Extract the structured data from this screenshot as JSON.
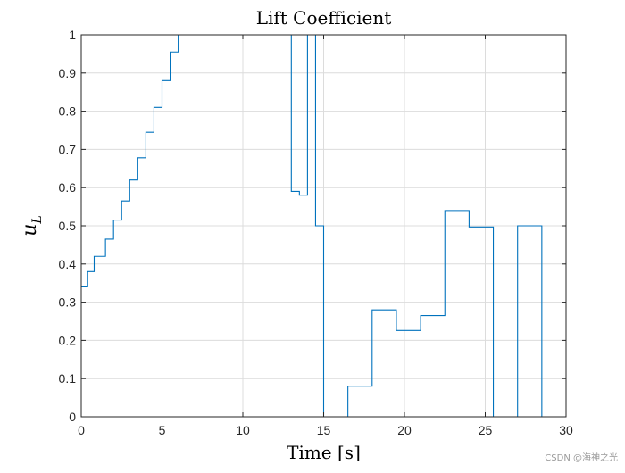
{
  "chart_data": {
    "type": "line",
    "step": true,
    "title": "Lift Coefficient",
    "xlabel": "Time [s]",
    "ylabel_base": "u",
    "ylabel_subscript": "L",
    "xlim": [
      0,
      30
    ],
    "ylim": [
      0,
      1
    ],
    "xticks": [
      0,
      5,
      10,
      15,
      20,
      25,
      30
    ],
    "yticks": [
      0,
      0.1,
      0.2,
      0.3,
      0.4,
      0.5,
      0.6,
      0.7,
      0.8,
      0.9,
      1
    ],
    "xtick_labels": [
      "0",
      "5",
      "10",
      "15",
      "20",
      "25",
      "30"
    ],
    "ytick_labels": [
      "0",
      "0.1",
      "0.2",
      "0.3",
      "0.4",
      "0.5",
      "0.6",
      "0.7",
      "0.8",
      "0.9",
      "1"
    ],
    "grid": true,
    "box": true,
    "line_color": "#0072BD",
    "series": [
      {
        "x": [
          0,
          0.4,
          0.8,
          1.0,
          1.5,
          2.0,
          2.5,
          3.0,
          3.5,
          4.0,
          4.5,
          5.0,
          5.5,
          6.0,
          13.0,
          13.5,
          14.0,
          14.5,
          15.0,
          16.5,
          18.0,
          19.5,
          21.0,
          22.5,
          24.0,
          25.5,
          27.0,
          28.5,
          30.0
        ],
        "y": [
          0.34,
          0.38,
          0.42,
          0.42,
          0.465,
          0.515,
          0.565,
          0.62,
          0.678,
          0.745,
          0.81,
          0.88,
          0.955,
          1.0,
          0.59,
          0.58,
          1.0,
          0.5,
          0.0,
          0.08,
          0.28,
          0.226,
          0.265,
          0.54,
          0.497,
          0.0,
          0.5,
          0.0,
          0.0
        ]
      }
    ]
  },
  "watermark": "CSDN @海神之光"
}
